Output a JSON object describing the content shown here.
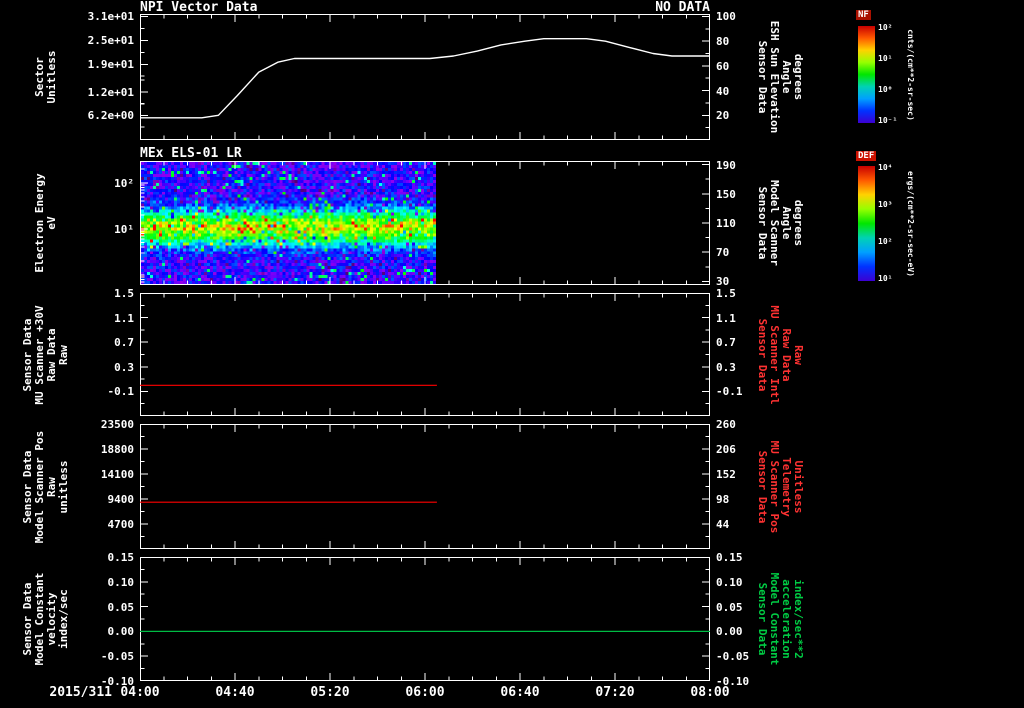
{
  "figure": {
    "bg_color": "#000000",
    "fg_color": "#ffffff",
    "x_axis": {
      "date_label": "2015/311",
      "tick_labels": [
        "04:00",
        "04:40",
        "05:20",
        "06:00",
        "06:40",
        "07:20",
        "08:00"
      ],
      "tick_minutes": [
        240,
        280,
        320,
        360,
        400,
        440,
        480
      ],
      "minor_tick_step_minutes": 10,
      "range_minutes": [
        240,
        480
      ]
    }
  },
  "colorbars": [
    {
      "title": "NF",
      "title_bg": "#aa1100",
      "tick_labels": [
        "10²",
        "10¹",
        "10⁰",
        "10⁻¹"
      ],
      "unit_label": "cnts/(cm**2-sr-sec)",
      "gradient": [
        "#c80000",
        "#ff5a00",
        "#ffd200",
        "#96ff00",
        "#00e600",
        "#00d2b4",
        "#00a0ff",
        "#0032ff",
        "#3c00d2"
      ]
    },
    {
      "title": "DEF",
      "title_bg": "#cc1100",
      "tick_labels": [
        "10⁴",
        "10³",
        "10²",
        "10¹"
      ],
      "unit_label": "ergs/(cm**2-sr-sec-eV)",
      "gradient": [
        "#c80000",
        "#ff5a00",
        "#ffd200",
        "#96ff00",
        "#00e600",
        "#00d2b4",
        "#00a0ff",
        "#0032ff",
        "#3c00d2"
      ]
    }
  ],
  "chart_data": [
    {
      "type": "line",
      "title": "NPI Vector Data",
      "annotation": "NO DATA",
      "left_axis": {
        "label_lines": [
          "Sector",
          "Unitless"
        ],
        "tick_labels": [
          "3.1e+01",
          "2.5e+01",
          "1.9e+01",
          "1.2e+01",
          "6.2e+00"
        ],
        "tick_values": [
          31,
          25,
          19,
          12,
          6.2
        ],
        "range": [
          0,
          31.62
        ],
        "color": "#ffffff"
      },
      "right_axis": {
        "label_lines": [
          "Sensor Data",
          "ESH Sun Elevation",
          "Angle",
          "degrees"
        ],
        "tick_labels": [
          "100",
          "80",
          "60",
          "40",
          "20"
        ],
        "tick_values": [
          100,
          80,
          60,
          40,
          20
        ],
        "range": [
          0,
          102
        ],
        "color": "#ffffff"
      },
      "series": [
        {
          "name": "esh-sun-elevation-angle",
          "color": "#ffffff",
          "axis": "right",
          "points": [
            [
              240,
              18
            ],
            [
              266,
              18
            ],
            [
              273,
              20
            ],
            [
              281,
              36
            ],
            [
              290,
              55
            ],
            [
              298,
              63
            ],
            [
              305,
              66
            ],
            [
              350,
              66
            ],
            [
              362,
              66
            ],
            [
              372,
              68
            ],
            [
              382,
              72
            ],
            [
              392,
              77
            ],
            [
              402,
              80
            ],
            [
              410,
              82
            ],
            [
              428,
              82
            ],
            [
              436,
              80
            ],
            [
              446,
              75
            ],
            [
              456,
              70
            ],
            [
              464,
              68
            ],
            [
              480,
              68
            ]
          ]
        }
      ]
    },
    {
      "type": "spectrogram",
      "title": "MEx ELS-01 LR",
      "left_axis": {
        "label_lines": [
          "Electron Energy",
          "eV"
        ],
        "scale": "log",
        "tick_labels": [
          "10²",
          "10¹"
        ],
        "tick_values": [
          100,
          10
        ],
        "range": [
          0.6,
          300
        ],
        "color": "#ffffff"
      },
      "right_axis": {
        "label_lines": [
          "Sensor Data",
          "Model Scanner",
          "Angle",
          "degrees"
        ],
        "tick_labels": [
          "190",
          "150",
          "110",
          "70",
          "30"
        ],
        "tick_values": [
          190,
          150,
          110,
          70,
          30
        ],
        "range": [
          25,
          195
        ],
        "color": "#ffffff"
      },
      "spectrogram": {
        "time_range_minutes": [
          240,
          365
        ],
        "energy_band_center_ev": 10.5,
        "band_sigma_decades": 0.26,
        "background_level": 0.27,
        "band_peak_level": 0.3,
        "colormap": "rainbow"
      }
    },
    {
      "type": "line",
      "title": "",
      "left_axis": {
        "label_lines": [
          "Sensor Data",
          "MU Scanner +30V",
          "Raw Data",
          "Raw"
        ],
        "tick_labels": [
          "1.5",
          "1.1",
          "0.7",
          "0.3",
          "-0.1"
        ],
        "tick_values": [
          1.5,
          1.1,
          0.7,
          0.3,
          -0.1
        ],
        "range": [
          -0.5,
          1.5
        ],
        "color": "#ffffff"
      },
      "right_axis": {
        "label_lines": [
          "Sensor Data",
          "MU Scanner Intl",
          "Raw Data",
          "Raw"
        ],
        "tick_labels": [
          "1.5",
          "1.1",
          "0.7",
          "0.3",
          "-0.1"
        ],
        "tick_values": [
          1.5,
          1.1,
          0.7,
          0.3,
          -0.1
        ],
        "range": [
          -0.5,
          1.5
        ],
        "color": "#ff3232"
      },
      "series": [
        {
          "name": "mu-scanner-30v-raw",
          "color": "#ff0000",
          "axis": "left",
          "points": [
            [
              240,
              0.0
            ],
            [
              365,
              0.0
            ]
          ]
        }
      ]
    },
    {
      "type": "line",
      "title": "",
      "left_axis": {
        "label_lines": [
          "Sensor Data",
          "Model Scanner Pos",
          "Raw",
          "unitless"
        ],
        "tick_labels": [
          "23500",
          "18800",
          "14100",
          "9400",
          "4700"
        ],
        "tick_values": [
          23500,
          18800,
          14100,
          9400,
          4700
        ],
        "range": [
          0,
          23500
        ],
        "color": "#ffffff"
      },
      "right_axis": {
        "label_lines": [
          "Sensor Data",
          "MU Scanner Pos",
          "Telemetry",
          "Unitless"
        ],
        "tick_labels": [
          "260",
          "206",
          "152",
          "98",
          "44"
        ],
        "tick_values": [
          260,
          206,
          152,
          98,
          44
        ],
        "range": [
          -10,
          260
        ],
        "color": "#ff3232"
      },
      "series": [
        {
          "name": "model-scanner-pos-raw",
          "color": "#ff0000",
          "axis": "left",
          "points": [
            [
              240,
              8800
            ],
            [
              365,
              8800
            ]
          ]
        }
      ]
    },
    {
      "type": "line",
      "title": "",
      "left_axis": {
        "label_lines": [
          "Sensor Data",
          "Model Constant",
          "velocity",
          "index/sec"
        ],
        "tick_labels": [
          "0.15",
          "0.10",
          "0.05",
          "0.00",
          "-0.05",
          "-0.10"
        ],
        "tick_values": [
          0.15,
          0.1,
          0.05,
          0.0,
          -0.05,
          -0.1
        ],
        "range": [
          -0.1,
          0.15
        ],
        "color": "#ffffff"
      },
      "right_axis": {
        "label_lines": [
          "Sensor Data",
          "Model Constant",
          "acceleration",
          "index/sec**2"
        ],
        "tick_labels": [
          "0.15",
          "0.10",
          "0.05",
          "0.00",
          "-0.05",
          "-0.10"
        ],
        "tick_values": [
          0.15,
          0.1,
          0.05,
          0.0,
          -0.05,
          -0.1
        ],
        "range": [
          -0.1,
          0.15
        ],
        "color": "#00cc44"
      },
      "series": [
        {
          "name": "model-constant-velocity",
          "color": "#00bb44",
          "axis": "left",
          "points": [
            [
              240,
              0.0
            ],
            [
              480,
              0.0
            ]
          ]
        }
      ]
    }
  ]
}
